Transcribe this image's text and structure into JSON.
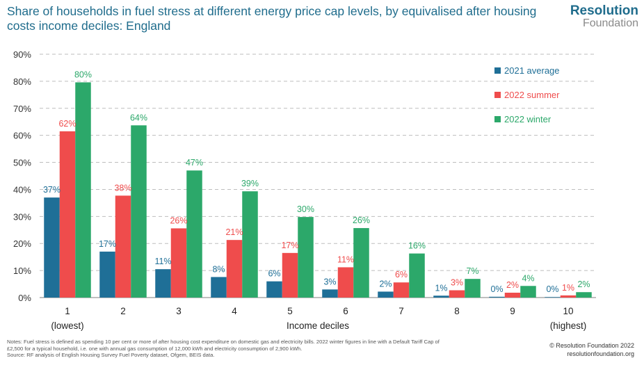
{
  "header": {
    "title": "Share of households in fuel stress at different energy price cap levels, by equivalised after housing costs income deciles: England",
    "logo_line1": "Resolution",
    "logo_line2": "Foundation"
  },
  "footer": {
    "notes": [
      "Notes: Fuel stress is defined as spending 10 per cent or more of after housing cost expenditure on domestic gas and electricity bills. 2022 winter figures in line with a Default Tariff Cap of",
      "£2,500 for a typical household, i.e. one with annual gas consumption of 12,000 kWh and electricity consumption of 2,900 kWh.",
      "Source: RF analysis of English Housing Survey Fuel Poverty dataset, Ofgem, BEIS data."
    ],
    "copyright": "© Resolution Foundation 2022",
    "website": "resolutionfoundation.org"
  },
  "colors": {
    "blue": "#1f6f97",
    "red": "#ef4c4c",
    "green": "#2ca86a",
    "title": "#1f6c8c"
  },
  "chart_data": {
    "type": "bar",
    "title": "Share of households in fuel stress at different energy price cap levels, by equivalised after housing costs income deciles: England",
    "xlabel": "Income deciles",
    "ylabel": "",
    "categories": [
      "1",
      "2",
      "3",
      "4",
      "5",
      "6",
      "7",
      "8",
      "9",
      "10"
    ],
    "category_sublabels": [
      "(lowest)",
      "",
      "",
      "",
      "",
      "",
      "",
      "",
      "",
      "(highest)"
    ],
    "yticks": [
      "0%",
      "10%",
      "20%",
      "30%",
      "40%",
      "50%",
      "60%",
      "70%",
      "80%",
      "90%"
    ],
    "ylim": [
      0,
      90
    ],
    "grid": true,
    "legend_position": "top-right",
    "series": [
      {
        "name": "2021 average",
        "color": "#1f6f97",
        "values": [
          37,
          17,
          10.5,
          7.6,
          6,
          3,
          2.2,
          0.7,
          0.3,
          0.2
        ],
        "labels": [
          "37%",
          "17%",
          "11%",
          "8%",
          "6%",
          "3%",
          "2%",
          "1%",
          "0%",
          "0%"
        ]
      },
      {
        "name": "2022 summer",
        "color": "#ef4c4c",
        "values": [
          61.5,
          37.7,
          25.6,
          21.3,
          16.5,
          11.2,
          5.6,
          2.7,
          1.8,
          0.8
        ],
        "labels": [
          "62%",
          "38%",
          "26%",
          "21%",
          "17%",
          "11%",
          "6%",
          "3%",
          "2%",
          "1%"
        ]
      },
      {
        "name": "2022 winter",
        "color": "#2ca86a",
        "values": [
          79.6,
          63.7,
          47,
          39.3,
          29.8,
          25.7,
          16.3,
          6.9,
          4.3,
          2
        ],
        "labels": [
          "80%",
          "64%",
          "47%",
          "39%",
          "30%",
          "26%",
          "16%",
          "7%",
          "4%",
          "2%"
        ]
      }
    ]
  }
}
